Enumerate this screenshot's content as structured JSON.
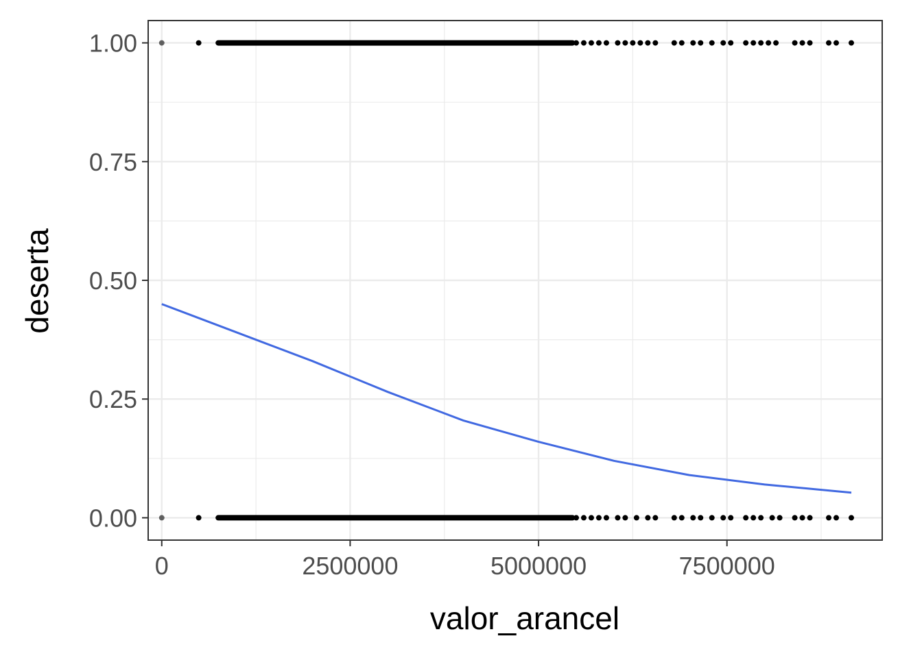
{
  "chart_data": {
    "type": "scatter",
    "title": "",
    "xlabel": "valor_arancel",
    "ylabel": "deserta",
    "xlim": [
      -180000,
      9560000
    ],
    "ylim": [
      -0.047,
      1.047
    ],
    "x_ticks": [
      0,
      2500000,
      5000000,
      7500000
    ],
    "x_tick_labels": [
      "0",
      "2500000",
      "5000000",
      "7500000"
    ],
    "y_ticks": [
      0,
      0.25,
      0.5,
      0.75,
      1
    ],
    "y_tick_labels": [
      "0.00",
      "0.25",
      "0.50",
      "0.75",
      "1.00"
    ],
    "grid": true,
    "legend": "none",
    "colors": {
      "points": "#000000",
      "fit_line": "#4169e1",
      "grid": "#ebebeb",
      "panel_border": "#333333"
    },
    "points_dense_range": [
      750000,
      5450000
    ],
    "points": [
      {
        "x": 0,
        "y": 1
      },
      {
        "x": 490000,
        "y": 1
      },
      {
        "x": 5500000,
        "y": 1
      },
      {
        "x": 5600000,
        "y": 1
      },
      {
        "x": 5700000,
        "y": 1
      },
      {
        "x": 5800000,
        "y": 1
      },
      {
        "x": 5900000,
        "y": 1
      },
      {
        "x": 6050000,
        "y": 1
      },
      {
        "x": 6150000,
        "y": 1
      },
      {
        "x": 6250000,
        "y": 1
      },
      {
        "x": 6350000,
        "y": 1
      },
      {
        "x": 6450000,
        "y": 1
      },
      {
        "x": 6550000,
        "y": 1
      },
      {
        "x": 6800000,
        "y": 1
      },
      {
        "x": 6900000,
        "y": 1
      },
      {
        "x": 7050000,
        "y": 1
      },
      {
        "x": 7150000,
        "y": 1
      },
      {
        "x": 7300000,
        "y": 1
      },
      {
        "x": 7450000,
        "y": 1
      },
      {
        "x": 7550000,
        "y": 1
      },
      {
        "x": 7750000,
        "y": 1
      },
      {
        "x": 7850000,
        "y": 1
      },
      {
        "x": 7950000,
        "y": 1
      },
      {
        "x": 8050000,
        "y": 1
      },
      {
        "x": 8150000,
        "y": 1
      },
      {
        "x": 8400000,
        "y": 1
      },
      {
        "x": 8500000,
        "y": 1
      },
      {
        "x": 8600000,
        "y": 1
      },
      {
        "x": 8850000,
        "y": 1
      },
      {
        "x": 8950000,
        "y": 1
      },
      {
        "x": 9150000,
        "y": 1
      },
      {
        "x": 0,
        "y": 0
      },
      {
        "x": 490000,
        "y": 0
      },
      {
        "x": 5500000,
        "y": 0
      },
      {
        "x": 5600000,
        "y": 0
      },
      {
        "x": 5700000,
        "y": 0
      },
      {
        "x": 5800000,
        "y": 0
      },
      {
        "x": 5900000,
        "y": 0
      },
      {
        "x": 6050000,
        "y": 0
      },
      {
        "x": 6150000,
        "y": 0
      },
      {
        "x": 6300000,
        "y": 0
      },
      {
        "x": 6450000,
        "y": 0
      },
      {
        "x": 6550000,
        "y": 0
      },
      {
        "x": 6800000,
        "y": 0
      },
      {
        "x": 6900000,
        "y": 0
      },
      {
        "x": 7050000,
        "y": 0
      },
      {
        "x": 7150000,
        "y": 0
      },
      {
        "x": 7300000,
        "y": 0
      },
      {
        "x": 7450000,
        "y": 0
      },
      {
        "x": 7550000,
        "y": 0
      },
      {
        "x": 7750000,
        "y": 0
      },
      {
        "x": 7850000,
        "y": 0
      },
      {
        "x": 7950000,
        "y": 0
      },
      {
        "x": 8100000,
        "y": 0
      },
      {
        "x": 8200000,
        "y": 0
      },
      {
        "x": 8400000,
        "y": 0
      },
      {
        "x": 8500000,
        "y": 0
      },
      {
        "x": 8600000,
        "y": 0
      },
      {
        "x": 8850000,
        "y": 0
      },
      {
        "x": 8950000,
        "y": 0
      },
      {
        "x": 9150000,
        "y": 0
      }
    ],
    "fit_line": {
      "x": [
        0,
        1000000,
        2000000,
        3000000,
        4000000,
        5000000,
        6000000,
        7000000,
        8000000,
        9150000
      ],
      "y": [
        0.45,
        0.39,
        0.33,
        0.265,
        0.205,
        0.16,
        0.12,
        0.09,
        0.07,
        0.053
      ]
    }
  }
}
